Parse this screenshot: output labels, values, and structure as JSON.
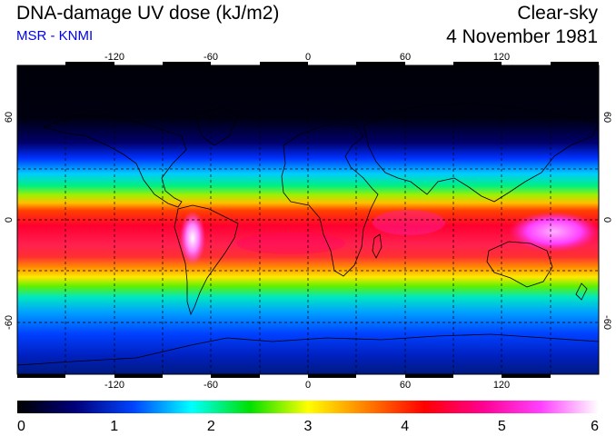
{
  "header": {
    "title": "DNA-damage UV dose (kJ/m2)",
    "source": "MSR - KNMI",
    "condition": "Clear-sky",
    "date": "4 November 1981"
  },
  "map": {
    "projection": "equirectangular",
    "lon_range": [
      -180,
      180
    ],
    "lat_range": [
      -90,
      90
    ],
    "x_ticks": [
      "-120",
      "-60",
      "0",
      "60",
      "120"
    ],
    "y_ticks": [
      "60",
      "0",
      "-60"
    ],
    "gridlines": "dashed"
  },
  "colorbar": {
    "min": 0,
    "max": 6,
    "labels": [
      "0",
      "1",
      "2",
      "3",
      "4",
      "5",
      "6"
    ],
    "colors": [
      "#000000",
      "#00007a",
      "#0044ff",
      "#00ffff",
      "#00e000",
      "#ffff00",
      "#ff7f00",
      "#ff0000",
      "#ff0090",
      "#ff40ff",
      "#ffffff"
    ]
  }
}
